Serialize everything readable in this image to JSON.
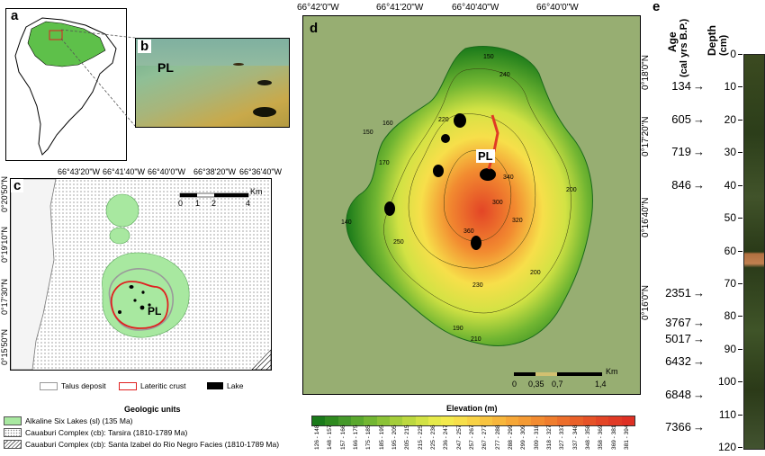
{
  "panels": {
    "a": "a",
    "b": "b",
    "c": "c",
    "d": "d",
    "e": "e"
  },
  "photo": {
    "label": "PL"
  },
  "panel_c": {
    "top_ticks": [
      "66°43'20\"W",
      "66°41'40\"W",
      "66°40'0\"W",
      "66°38'20\"W",
      "66°36'40\"W"
    ],
    "left_ticks": [
      "0°20'50\"N",
      "0°19'10\"N",
      "0°17'30\"N",
      "0°15'50\"N"
    ],
    "scale": [
      "0",
      "1",
      "2",
      "4",
      "Km"
    ],
    "lake_label": "PL"
  },
  "legend_lines": [
    {
      "label": "Talus deposit",
      "color": "#9a9a9a"
    },
    {
      "label": "Lateritic crust",
      "color": "#e02020"
    },
    {
      "label": "Lake",
      "color": "#000000"
    }
  ],
  "geologic": {
    "title": "Geologic units",
    "items": [
      {
        "label": "Alkaline Six Lakes (sl) (135 Ma)",
        "color": "#a8e8a0"
      },
      {
        "label": "Cauaburi Complex (cb): Tarsira (1810-1789 Ma)",
        "color": "#dddddd"
      },
      {
        "label": "Cauaburi Complex (cb): Santa Izabel do Rio Negro Facies (1810-1789 Ma)",
        "color": "#ffffff"
      }
    ]
  },
  "panel_d": {
    "top_ticks": [
      "66°42'0\"W",
      "66°41'20\"W",
      "66°40'40\"W",
      "66°40'0\"W"
    ],
    "right_ticks": [
      "0°18'0\"N",
      "0°17'20\"N",
      "0°16'40\"N",
      "0°16'0\"N"
    ],
    "lake_label": "PL",
    "scale": [
      "0",
      "0,35",
      "0,7",
      "1,4",
      "Km"
    ],
    "contour_labels": [
      "150",
      "240",
      "220",
      "160",
      "150",
      "170",
      "180",
      "340",
      "170",
      "150",
      "200",
      "300",
      "340",
      "150",
      "140",
      "360",
      "250",
      "230",
      "180",
      "320",
      "160",
      "210",
      "200",
      "180",
      "230",
      "270",
      "170",
      "150",
      "200",
      "280",
      "190",
      "210",
      "220",
      "170",
      "200",
      "180"
    ]
  },
  "elevation_scale": {
    "title": "Elevation (m)",
    "ranges": [
      "126 - 148",
      "148 - 157",
      "157 - 166",
      "166 - 175",
      "175 - 185",
      "185 - 195",
      "195 - 205",
      "205 - 215",
      "215 - 225",
      "225 - 236",
      "236 - 247",
      "247 - 257",
      "257 - 267",
      "267 - 277",
      "277 - 288",
      "288 - 299",
      "299 - 309",
      "309 - 318",
      "318 - 327",
      "327 - 337",
      "337 - 348",
      "348 - 358",
      "358 - 369",
      "369 - 381",
      "381 - 394"
    ],
    "colors": [
      "#1a7a1a",
      "#2f8a1f",
      "#45992a",
      "#5aa82e",
      "#72b632",
      "#8bc236",
      "#a4cd3a",
      "#bcd83f",
      "#d2e244",
      "#e6ea4a",
      "#f3ea4d",
      "#f7df4a",
      "#f8d245",
      "#f8c440",
      "#f7b63b",
      "#f6a737",
      "#f49a33",
      "#f28b30",
      "#ef7d2d",
      "#ec6e2b",
      "#e96029",
      "#e65227",
      "#e34526",
      "#e03a25",
      "#de3024"
    ]
  },
  "panel_e": {
    "age_header": "Age",
    "age_units": "(cal yrs B.P.)",
    "depth_header": "Depth",
    "depth_units": "(cm)",
    "depth_ticks": [
      "0",
      "10",
      "20",
      "30",
      "40",
      "50",
      "60",
      "70",
      "80",
      "90",
      "100",
      "110",
      "120"
    ],
    "ages": [
      {
        "age": "134",
        "depth": 10
      },
      {
        "age": "605",
        "depth": 20
      },
      {
        "age": "719",
        "depth": 30
      },
      {
        "age": "846",
        "depth": 40
      },
      {
        "age": "2351",
        "depth": 73
      },
      {
        "age": "3767",
        "depth": 82
      },
      {
        "age": "5017",
        "depth": 87
      },
      {
        "age": "6432",
        "depth": 94
      },
      {
        "age": "6848",
        "depth": 104
      },
      {
        "age": "7366",
        "depth": 114
      }
    ]
  }
}
